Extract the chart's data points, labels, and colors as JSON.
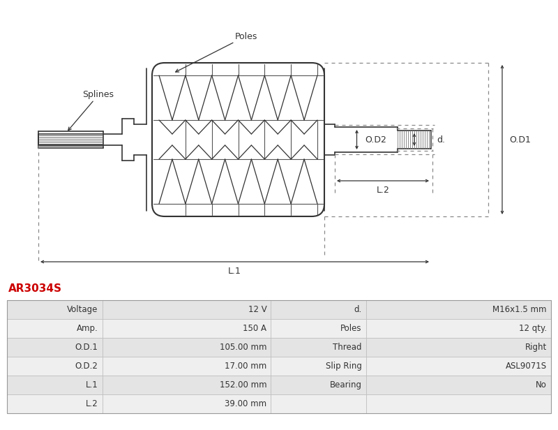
{
  "title": "AR3034S",
  "title_color": "#cc0000",
  "bg_color": "#ffffff",
  "diagram_line_color": "#333333",
  "dotted_line_color": "#888888",
  "table_data": [
    [
      "Voltage",
      "12 V",
      "d.",
      "M16x1.5 mm"
    ],
    [
      "Amp.",
      "150 A",
      "Poles",
      "12 qty."
    ],
    [
      "O.D.1",
      "105.00 mm",
      "Thread",
      "Right"
    ],
    [
      "O.D.2",
      "17.00 mm",
      "Slip Ring",
      "ASL9071S"
    ],
    [
      "L.1",
      "152.00 mm",
      "Bearing",
      "No"
    ],
    [
      "L.2",
      "39.00 mm",
      "",
      ""
    ]
  ],
  "labels": {
    "poles": "Poles",
    "splines": "Splines",
    "od1": "O.D1",
    "od2": "O.D2",
    "d": "d.",
    "l1": "L.1",
    "l2": "L.2"
  }
}
